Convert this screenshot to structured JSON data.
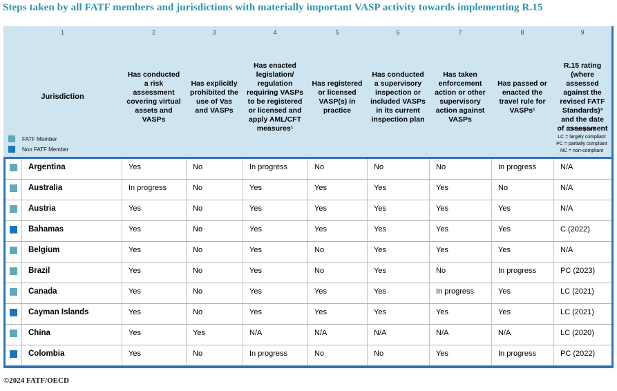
{
  "title": "Steps taken by all FATF members and jurisdictions with materially important VASP activity towards implementing R.15",
  "footer": "©2024 FATF/OECD",
  "colors": {
    "title": "#2b93ae",
    "header_band": "#cfe4f1",
    "accent_line": "#2e74b5",
    "fatf_member_marker": "#61a8bf",
    "non_fatf_member_marker": "#1b75bc"
  },
  "member_legend": {
    "fatf": "FATF Member",
    "non_fatf": "Non FATF Member"
  },
  "rating_key": [
    "C=compliant",
    "LC = largely compliant",
    "PC = partially compliant",
    "NC = non-compliant"
  ],
  "columns": [
    {
      "num": "1",
      "label": "Jurisdiction"
    },
    {
      "num": "2",
      "label": "Has conducted a risk assessment covering virtual assets and VASPs"
    },
    {
      "num": "3",
      "label": "Has explicitly prohibited the use of Vas and VASPs"
    },
    {
      "num": "4",
      "label": "Has enacted legislation/ regulation requiring VASPs to be registered or licensed and apply AML/CFT measures¹"
    },
    {
      "num": "5",
      "label": "Has registered or licensed VASP(s) in practice"
    },
    {
      "num": "6",
      "label": "Has conducted a supervisory inspection or included VASPs in its current inspection plan"
    },
    {
      "num": "7",
      "label": "Has taken enforcement action or other supervisory action against VASPs"
    },
    {
      "num": "8",
      "label": "Has passed or enacted the travel rule for VASPs¹"
    },
    {
      "num": "9",
      "label": "R.15 rating (where assessed against the revised FATF Standards)³ and the date of assessment"
    }
  ],
  "rows": [
    {
      "member": "fatf",
      "jurisdiction": "Argentina",
      "values": [
        "Yes",
        "No",
        "In progress",
        "No",
        "No",
        "No",
        "In progress",
        "N/A"
      ]
    },
    {
      "member": "fatf",
      "jurisdiction": "Australia",
      "values": [
        "In progress",
        "No",
        "Yes",
        "Yes",
        "Yes",
        "Yes",
        "No",
        "N/A"
      ]
    },
    {
      "member": "fatf",
      "jurisdiction": "Austria",
      "values": [
        "Yes",
        "No",
        "Yes",
        "Yes",
        "Yes",
        "Yes",
        "Yes",
        "N/A"
      ]
    },
    {
      "member": "non",
      "jurisdiction": "Bahamas",
      "values": [
        "Yes",
        "No",
        "Yes",
        "Yes",
        "Yes",
        "Yes",
        "Yes",
        "C (2022)"
      ]
    },
    {
      "member": "fatf",
      "jurisdiction": "Belgium",
      "values": [
        "Yes",
        "No",
        "Yes",
        "No",
        "Yes",
        "Yes",
        "Yes",
        "N/A"
      ]
    },
    {
      "member": "fatf",
      "jurisdiction": "Brazil",
      "values": [
        "Yes",
        "No",
        "Yes",
        "No",
        "Yes",
        "No",
        "In progress",
        "PC (2023)"
      ]
    },
    {
      "member": "fatf",
      "jurisdiction": "Canada",
      "values": [
        "Yes",
        "No",
        "Yes",
        "Yes",
        "Yes",
        "In progress",
        "Yes",
        "LC (2021)"
      ]
    },
    {
      "member": "non",
      "jurisdiction": "Cayman Islands",
      "values": [
        "Yes",
        "No",
        "Yes",
        "Yes",
        "Yes",
        "Yes",
        "Yes",
        "LC (2021)"
      ]
    },
    {
      "member": "fatf",
      "jurisdiction": "China",
      "values": [
        "Yes",
        "Yes",
        "N/A",
        "N/A",
        "N/A",
        "N/A",
        "N/A",
        "LC (2020)"
      ]
    },
    {
      "member": "non",
      "jurisdiction": "Colombia",
      "values": [
        "Yes",
        "No",
        "In progress",
        "No",
        "No",
        "Yes",
        "In progress",
        "PC (2022)"
      ]
    }
  ]
}
